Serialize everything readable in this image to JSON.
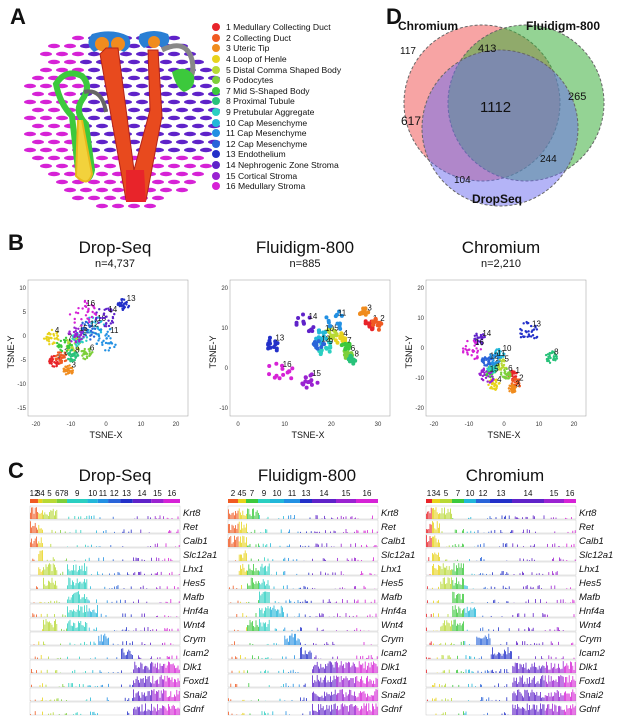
{
  "panels": {
    "A": "A",
    "B": "B",
    "C": "C",
    "D": "D"
  },
  "legend": [
    {
      "label": "1 Medullary Collecting Duct",
      "color": "#e8242a"
    },
    {
      "label": "2 Collecting Duct",
      "color": "#f05a22"
    },
    {
      "label": "3 Uteric Tip",
      "color": "#f08c1e"
    },
    {
      "label": "4 Loop of Henle",
      "color": "#e8d31c"
    },
    {
      "label": "5 Distal Comma Shaped Body",
      "color": "#b8d935"
    },
    {
      "label": "6 Podocytes",
      "color": "#7dcf3a"
    },
    {
      "label": "7 Mid S-Shaped Body",
      "color": "#3cc93c"
    },
    {
      "label": "8 Proximal Tubule",
      "color": "#28c27a"
    },
    {
      "label": "9 Pretubular Aggregate",
      "color": "#2bcfc1"
    },
    {
      "label": "10 Cap Mesenchyme",
      "color": "#22b7d9"
    },
    {
      "label": "11 Cap Mesenchyme",
      "color": "#2290e3"
    },
    {
      "label": "12 Cap Mesenchyme",
      "color": "#2a64d9"
    },
    {
      "label": "13 Endothelium",
      "color": "#2330c9"
    },
    {
      "label": "14 Nephrogenic Zone Stroma",
      "color": "#5f22c9"
    },
    {
      "label": "15 Cortical Stroma",
      "color": "#9a22d1"
    },
    {
      "label": "16 Medullary Stroma",
      "color": "#d622d6"
    }
  ],
  "venn": {
    "labels": {
      "chromium": "Chromium",
      "fluidigm": "Fluidigm-800",
      "dropseq": "DropSeq"
    },
    "regions": {
      "chromium_only": "117",
      "chromium_fluidigm": "413",
      "fluidigm_only": "265",
      "all": "1112",
      "chromium_dropseq": "617",
      "fluidigm_dropseq": "244",
      "dropseq_only": "104"
    }
  },
  "tsne": [
    {
      "title": "Drop-Seq",
      "n": "n=4,737",
      "xlabel": "TSNE-X",
      "ylabel": "TSNE-Y",
      "xticks": [
        "-20",
        "-10",
        "0",
        "10",
        "20"
      ],
      "yticks": [
        "10",
        "5",
        "0",
        "-5",
        "-10",
        "-15"
      ],
      "clusters": [
        {
          "id": "1",
          "c": 0
        },
        {
          "id": "2",
          "c": 1
        },
        {
          "id": "3",
          "c": 2
        },
        {
          "id": "4",
          "c": 3
        },
        {
          "id": "5",
          "c": 4
        },
        {
          "id": "6",
          "c": 5
        },
        {
          "id": "7",
          "c": 6
        },
        {
          "id": "8",
          "c": 7
        },
        {
          "id": "9",
          "c": 8
        },
        {
          "id": "10",
          "c": 9
        },
        {
          "id": "11",
          "c": 10
        },
        {
          "id": "12",
          "c": 11
        },
        {
          "id": "13",
          "c": 12
        },
        {
          "id": "14",
          "c": 13
        },
        {
          "id": "15",
          "c": 14
        },
        {
          "id": "16",
          "c": 15
        }
      ]
    },
    {
      "title": "Fluidigm-800",
      "n": "n=885",
      "xlabel": "TSNE-X",
      "ylabel": "TSNE-Y",
      "xticks": [
        "0",
        "10",
        "20",
        "30"
      ],
      "yticks": [
        "20",
        "10",
        "0",
        "-10"
      ],
      "clusters": [
        {
          "id": "1",
          "c": 0
        },
        {
          "id": "2",
          "c": 1
        },
        {
          "id": "3",
          "c": 2
        },
        {
          "id": "4",
          "c": 3
        },
        {
          "id": "5",
          "c": 4
        },
        {
          "id": "6",
          "c": 5
        },
        {
          "id": "7",
          "c": 6
        },
        {
          "id": "8",
          "c": 7
        },
        {
          "id": "9",
          "c": 8
        },
        {
          "id": "10",
          "c": 9
        },
        {
          "id": "11",
          "c": 10
        },
        {
          "id": "12",
          "c": 11
        },
        {
          "id": "13",
          "c": 12
        },
        {
          "id": "14",
          "c": 13
        },
        {
          "id": "15",
          "c": 14
        },
        {
          "id": "16",
          "c": 15
        }
      ]
    },
    {
      "title": "Chromium",
      "n": "n=2,210",
      "xlabel": "TSNE-X",
      "ylabel": "TSNE-Y",
      "xticks": [
        "-20",
        "-10",
        "0",
        "10",
        "20"
      ],
      "yticks": [
        "20",
        "10",
        "0",
        "-10",
        "-20"
      ],
      "clusters": [
        {
          "id": "1",
          "c": 0
        },
        {
          "id": "2",
          "c": 1
        },
        {
          "id": "3",
          "c": 2
        },
        {
          "id": "4",
          "c": 3
        },
        {
          "id": "5",
          "c": 4
        },
        {
          "id": "6",
          "c": 5
        },
        {
          "id": "7",
          "c": 6
        },
        {
          "id": "8",
          "c": 7
        },
        {
          "id": "9",
          "c": 8
        },
        {
          "id": "10",
          "c": 9
        },
        {
          "id": "11",
          "c": 10
        },
        {
          "id": "12",
          "c": 11
        },
        {
          "id": "13",
          "c": 12
        },
        {
          "id": "14",
          "c": 13
        },
        {
          "id": "15",
          "c": 14
        },
        {
          "id": "16",
          "c": 15
        }
      ]
    }
  ],
  "tracks": [
    {
      "title": "Drop-Seq",
      "labels": [
        "12",
        "34",
        "5",
        "678",
        "9",
        "10",
        "11",
        "12",
        "13",
        "14",
        "15",
        "16"
      ]
    },
    {
      "title": "Fluidigm-800",
      "labels": [
        "2",
        "45",
        "7",
        "9",
        "10",
        "11",
        "13",
        "14",
        "15",
        "16"
      ]
    },
    {
      "title": "Chromium",
      "labels": [
        "1",
        "34",
        "5",
        "7",
        "10",
        "12",
        "13",
        "14",
        "15",
        "16"
      ]
    }
  ],
  "genes": [
    "Krt8",
    "Ret",
    "Calb1",
    "Slc12a1",
    "Lhx1",
    "Hes5",
    "Mafb",
    "Hnf4a",
    "Wnt4",
    "Crym",
    "Icam2",
    "Dlk1",
    "Foxd1",
    "Snai2",
    "Gdnf"
  ]
}
